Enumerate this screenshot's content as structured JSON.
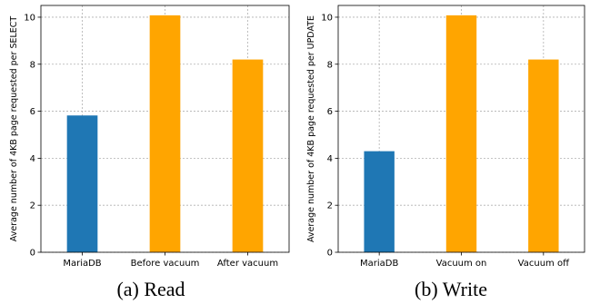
{
  "chart_data": [
    {
      "type": "bar",
      "categories": [
        "MariaDB",
        "Before vacuum",
        "After vacuum"
      ],
      "values": [
        5.82,
        10.08,
        8.2
      ],
      "bar_colors": [
        "#1f77b4",
        "#ffa500",
        "#ffa500"
      ],
      "ylabel": "Average number of 4KB page requested per SELECT",
      "ylim": [
        0,
        10.5
      ],
      "yticks": [
        0,
        2,
        4,
        6,
        8,
        10
      ],
      "grid": true,
      "caption": "(a) Read"
    },
    {
      "type": "bar",
      "categories": [
        "MariaDB",
        "Vacuum on",
        "Vacuum off"
      ],
      "values": [
        4.3,
        10.08,
        8.2
      ],
      "bar_colors": [
        "#1f77b4",
        "#ffa500",
        "#ffa500"
      ],
      "ylabel": "Average number of 4KB page requested per UPDATE",
      "ylim": [
        0,
        10.5
      ],
      "yticks": [
        0,
        2,
        4,
        6,
        8,
        10
      ],
      "grid": true,
      "caption": "(b) Write"
    }
  ]
}
